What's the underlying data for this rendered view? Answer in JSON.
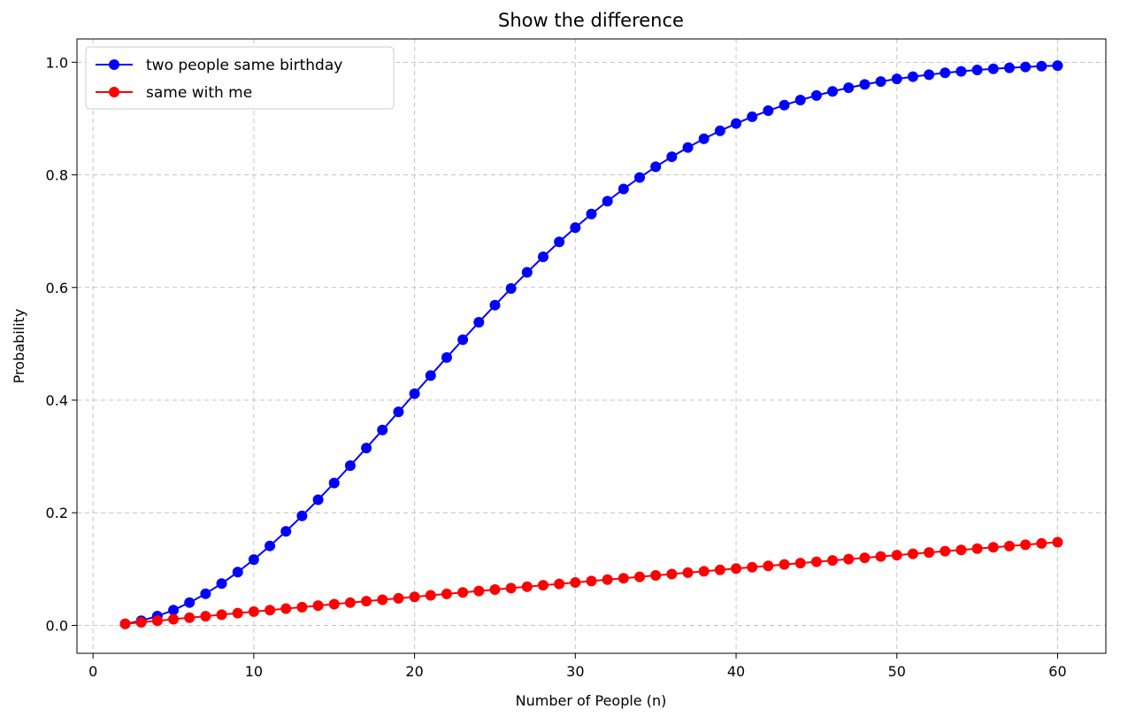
{
  "chart_data": {
    "type": "line",
    "title": "Show the difference",
    "xlabel": "Number of People (n)",
    "ylabel": "Probability",
    "xlim": [
      -1,
      63
    ],
    "ylim": [
      -0.0496,
      1.0414
    ],
    "xticks": [
      0,
      10,
      20,
      30,
      40,
      50,
      60
    ],
    "yticks": [
      0.0,
      0.2,
      0.4,
      0.6,
      0.8,
      1.0
    ],
    "xtick_labels": [
      "0",
      "10",
      "20",
      "30",
      "40",
      "50",
      "60"
    ],
    "ytick_labels": [
      "0.0",
      "0.2",
      "0.4",
      "0.6",
      "0.8",
      "1.0"
    ],
    "grid": true,
    "legend_position": "upper-left",
    "x": [
      2,
      3,
      4,
      5,
      6,
      7,
      8,
      9,
      10,
      11,
      12,
      13,
      14,
      15,
      16,
      17,
      18,
      19,
      20,
      21,
      22,
      23,
      24,
      25,
      26,
      27,
      28,
      29,
      30,
      31,
      32,
      33,
      34,
      35,
      36,
      37,
      38,
      39,
      40,
      41,
      42,
      43,
      44,
      45,
      46,
      47,
      48,
      49,
      50,
      51,
      52,
      53,
      54,
      55,
      56,
      57,
      58,
      59,
      60
    ],
    "series": [
      {
        "name": "two people same birthday",
        "color": "#0000ff",
        "marker": "circle",
        "values": [
          0.0027,
          0.0082,
          0.0164,
          0.0271,
          0.0405,
          0.0562,
          0.0743,
          0.0946,
          0.1169,
          0.1411,
          0.167,
          0.1944,
          0.2231,
          0.2529,
          0.2836,
          0.315,
          0.3469,
          0.3791,
          0.4114,
          0.4437,
          0.4757,
          0.5073,
          0.5383,
          0.5687,
          0.5982,
          0.6269,
          0.6545,
          0.681,
          0.7063,
          0.7305,
          0.7533,
          0.775,
          0.7953,
          0.8144,
          0.8322,
          0.8487,
          0.8641,
          0.8782,
          0.8912,
          0.9032,
          0.914,
          0.9239,
          0.9329,
          0.941,
          0.9483,
          0.9548,
          0.9606,
          0.9658,
          0.9704,
          0.9744,
          0.978,
          0.9812,
          0.9839,
          0.9863,
          0.9883,
          0.9901,
          0.9917,
          0.993,
          0.9941
        ]
      },
      {
        "name": "same with me",
        "color": "#ff0000",
        "marker": "circle",
        "values": [
          0.0027,
          0.0055,
          0.0082,
          0.0109,
          0.0136,
          0.0163,
          0.019,
          0.0217,
          0.0244,
          0.0271,
          0.0297,
          0.0324,
          0.035,
          0.0377,
          0.0403,
          0.0429,
          0.0455,
          0.0481,
          0.0507,
          0.0533,
          0.0559,
          0.0585,
          0.061,
          0.0636,
          0.0661,
          0.0687,
          0.0712,
          0.0737,
          0.0762,
          0.0787,
          0.0812,
          0.0837,
          0.0862,
          0.0887,
          0.0911,
          0.0936,
          0.096,
          0.0985,
          0.1009,
          0.1033,
          0.1057,
          0.1081,
          0.1105,
          0.1129,
          0.1153,
          0.1177,
          0.12,
          0.1224,
          0.1247,
          0.1271,
          0.1294,
          0.1317,
          0.134,
          0.1363,
          0.1386,
          0.1409,
          0.1432,
          0.1455,
          0.1477
        ]
      }
    ]
  }
}
